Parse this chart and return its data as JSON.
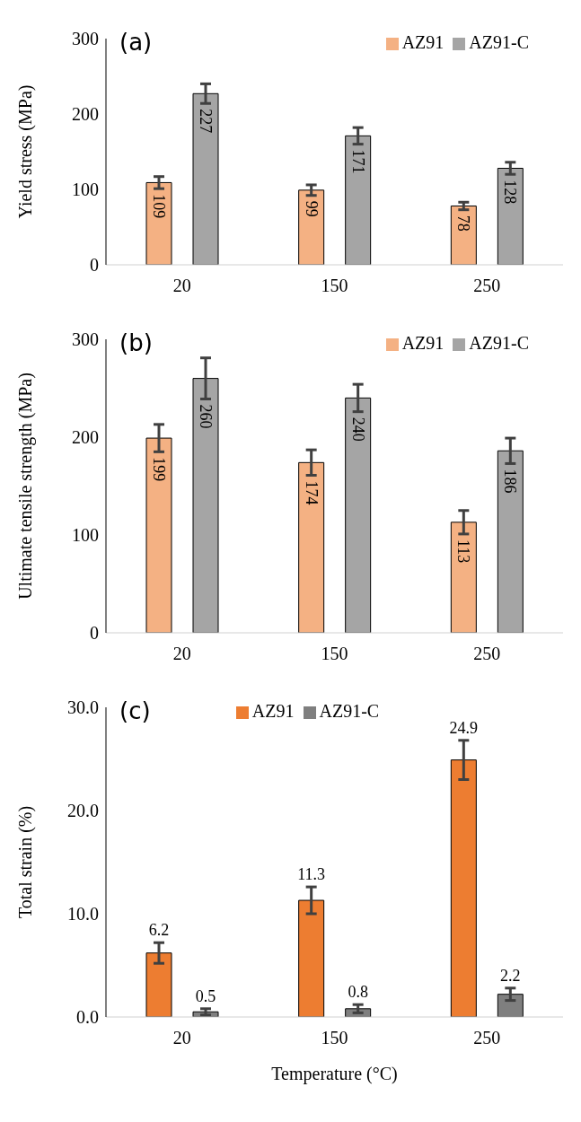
{
  "chart_data": [
    {
      "type": "bar",
      "annotations": [
        "(a)"
      ],
      "ylabel": "Yield stress (MPa)",
      "categories": [
        "20",
        "150",
        "250"
      ],
      "ylim": [
        0,
        300
      ],
      "yticks": [
        0,
        100,
        200,
        300
      ],
      "legend": "top right",
      "data_labels": true,
      "grid": false,
      "series": [
        {
          "name": "AZ91",
          "color": "#f4b183",
          "values": [
            109,
            99,
            78
          ],
          "errors": [
            8,
            7,
            5
          ]
        },
        {
          "name": "AZ91-C",
          "color": "#a5a5a5",
          "values": [
            227,
            171,
            128
          ],
          "errors": [
            13,
            11,
            8
          ]
        }
      ]
    },
    {
      "type": "bar",
      "annotations": [
        "(b)"
      ],
      "ylabel": "Ultimate tensile strength (MPa)",
      "categories": [
        "20",
        "150",
        "250"
      ],
      "ylim": [
        0,
        300
      ],
      "yticks": [
        0,
        100,
        200,
        300
      ],
      "legend": "top right",
      "data_labels": true,
      "grid": false,
      "series": [
        {
          "name": "AZ91",
          "color": "#f4b183",
          "values": [
            199,
            174,
            113
          ],
          "errors": [
            14,
            13,
            12
          ]
        },
        {
          "name": "AZ91-C",
          "color": "#a5a5a5",
          "values": [
            260,
            240,
            186
          ],
          "errors": [
            21,
            14,
            13
          ]
        }
      ]
    },
    {
      "type": "bar",
      "annotations": [
        "(c)"
      ],
      "ylabel": "Total strain (%)",
      "xlabel": "Temperature (°C)",
      "categories": [
        "20",
        "150",
        "250"
      ],
      "ylim": [
        0,
        30
      ],
      "yticks": [
        {
          "value": 0,
          "label": "0.0"
        },
        {
          "value": 10,
          "label": "10.0"
        },
        {
          "value": 20,
          "label": "20.0"
        },
        {
          "value": 30,
          "label": "30.0"
        }
      ],
      "legend": "top",
      "data_labels": true,
      "grid": false,
      "series": [
        {
          "name": "AZ91",
          "color": "#ed7d31",
          "values": [
            6.2,
            11.3,
            24.9
          ],
          "errors": [
            1.0,
            1.3,
            1.9
          ]
        },
        {
          "name": "AZ91-C",
          "color": "#7f7f7f",
          "values": [
            0.5,
            0.8,
            2.2
          ],
          "errors": [
            0.3,
            0.4,
            0.6
          ]
        }
      ]
    }
  ]
}
